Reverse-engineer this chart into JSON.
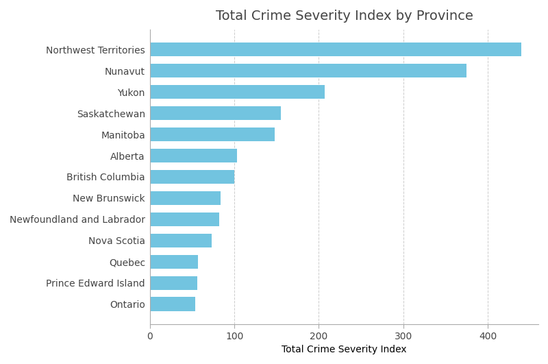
{
  "title": "Total Crime Severity Index by Province",
  "xlabel": "Total Crime Severity Index",
  "provinces": [
    "Northwest Territories",
    "Nunavut",
    "Yukon",
    "Saskatchewan",
    "Manitoba",
    "Alberta",
    "British Columbia",
    "New Brunswick",
    "Newfoundland and Labrador",
    "Nova Scotia",
    "Quebec",
    "Prince Edward Island",
    "Ontario"
  ],
  "values": [
    440,
    375,
    207,
    155,
    148,
    103,
    100,
    84,
    82,
    73,
    57,
    56,
    54
  ],
  "bar_color": "#72C4E0",
  "background_color": "#FFFFFF",
  "bar_height": 0.65,
  "xlim": [
    0,
    460
  ],
  "grid_color": "#CCCCCC",
  "title_fontsize": 14,
  "label_fontsize": 10,
  "tick_fontsize": 10,
  "spine_color": "#AAAAAA"
}
